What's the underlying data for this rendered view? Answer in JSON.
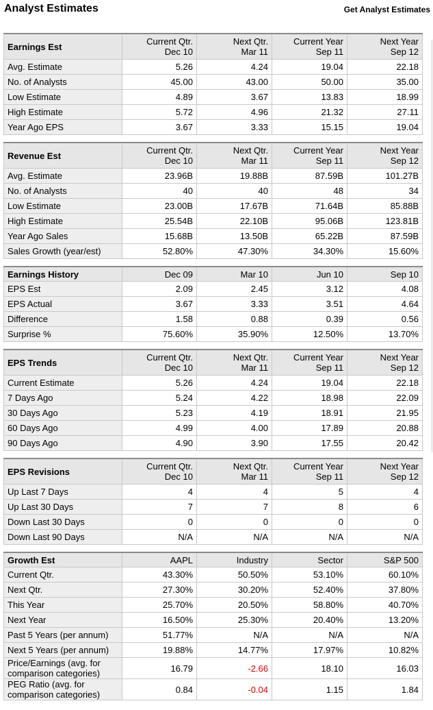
{
  "header": {
    "title": "Analyst Estimates",
    "link": "Get Analyst Estimates"
  },
  "tables": [
    {
      "title": "Earnings Est",
      "columns": [
        [
          "Current Qtr.",
          "Dec 10"
        ],
        [
          "Next Qtr.",
          "Mar 11"
        ],
        [
          "Current Year",
          "Sep 11"
        ],
        [
          "Next Year",
          "Sep 12"
        ]
      ],
      "rows": [
        {
          "label": "Avg. Estimate",
          "values": [
            "5.26",
            "4.24",
            "19.04",
            "22.18"
          ]
        },
        {
          "label": "No. of Analysts",
          "values": [
            "45.00",
            "43.00",
            "50.00",
            "35.00"
          ]
        },
        {
          "label": "Low Estimate",
          "values": [
            "4.89",
            "3.67",
            "13.83",
            "18.99"
          ]
        },
        {
          "label": "High Estimate",
          "values": [
            "5.72",
            "4.96",
            "21.32",
            "27.11"
          ]
        },
        {
          "label": "Year Ago EPS",
          "values": [
            "3.67",
            "3.33",
            "15.15",
            "19.04"
          ]
        }
      ]
    },
    {
      "title": "Revenue Est",
      "columns": [
        [
          "Current Qtr.",
          "Dec 10"
        ],
        [
          "Next Qtr.",
          "Mar 11"
        ],
        [
          "Current Year",
          "Sep 11"
        ],
        [
          "Next Year",
          "Sep 12"
        ]
      ],
      "rows": [
        {
          "label": "Avg. Estimate",
          "values": [
            "23.96B",
            "19.88B",
            "87.59B",
            "101.27B"
          ]
        },
        {
          "label": "No. of Analysts",
          "values": [
            "40",
            "40",
            "48",
            "34"
          ]
        },
        {
          "label": "Low Estimate",
          "values": [
            "23.00B",
            "17.67B",
            "71.64B",
            "85.88B"
          ]
        },
        {
          "label": "High Estimate",
          "values": [
            "25.54B",
            "22.10B",
            "95.06B",
            "123.81B"
          ]
        },
        {
          "label": "Year Ago Sales",
          "values": [
            "15.68B",
            "13.50B",
            "65.22B",
            "87.59B"
          ]
        },
        {
          "label": "Sales Growth (year/est)",
          "values": [
            "52.80%",
            "47.30%",
            "34.30%",
            "15.60%"
          ]
        }
      ]
    },
    {
      "title": "Earnings History",
      "columns": [
        [
          "Dec 09"
        ],
        [
          "Mar 10"
        ],
        [
          "Jun 10"
        ],
        [
          "Sep 10"
        ]
      ],
      "rows": [
        {
          "label": "EPS Est",
          "values": [
            "2.09",
            "2.45",
            "3.12",
            "4.08"
          ]
        },
        {
          "label": "EPS Actual",
          "values": [
            "3.67",
            "3.33",
            "3.51",
            "4.64"
          ]
        },
        {
          "label": "Difference",
          "values": [
            "1.58",
            "0.88",
            "0.39",
            "0.56"
          ]
        },
        {
          "label": "Surprise %",
          "values": [
            "75.60%",
            "35.90%",
            "12.50%",
            "13.70%"
          ]
        }
      ]
    },
    {
      "title": "EPS Trends",
      "columns": [
        [
          "Current Qtr.",
          "Dec 10"
        ],
        [
          "Next Qtr.",
          "Mar 11"
        ],
        [
          "Current Year",
          "Sep 11"
        ],
        [
          "Next Year",
          "Sep 12"
        ]
      ],
      "rows": [
        {
          "label": "Current Estimate",
          "values": [
            "5.26",
            "4.24",
            "19.04",
            "22.18"
          ]
        },
        {
          "label": "7 Days Ago",
          "values": [
            "5.24",
            "4.22",
            "18.98",
            "22.09"
          ]
        },
        {
          "label": "30 Days Ago",
          "values": [
            "5.23",
            "4.19",
            "18.91",
            "21.95"
          ]
        },
        {
          "label": "60 Days Ago",
          "values": [
            "4.99",
            "4.00",
            "17.89",
            "20.88"
          ]
        },
        {
          "label": "90 Days Ago",
          "values": [
            "4.90",
            "3.90",
            "17.55",
            "20.42"
          ]
        }
      ]
    },
    {
      "title": "EPS Revisions",
      "columns": [
        [
          "Current Qtr.",
          "Dec 10"
        ],
        [
          "Next Qtr.",
          "Mar 11"
        ],
        [
          "Current Year",
          "Sep 11"
        ],
        [
          "Next Year",
          "Sep 12"
        ]
      ],
      "rows": [
        {
          "label": "Up Last 7 Days",
          "values": [
            "4",
            "4",
            "5",
            "4"
          ]
        },
        {
          "label": "Up Last 30 Days",
          "values": [
            "7",
            "7",
            "8",
            "6"
          ]
        },
        {
          "label": "Down Last 30 Days",
          "values": [
            "0",
            "0",
            "0",
            "0"
          ]
        },
        {
          "label": "Down Last 90 Days",
          "values": [
            "N/A",
            "N/A",
            "N/A",
            "N/A"
          ]
        }
      ]
    },
    {
      "title": "Growth Est",
      "columns": [
        [
          "AAPL"
        ],
        [
          "Industry"
        ],
        [
          "Sector"
        ],
        [
          "S&P 500"
        ]
      ],
      "rows": [
        {
          "label": "Current Qtr.",
          "values": [
            "43.30%",
            "50.50%",
            "53.10%",
            "60.10%"
          ]
        },
        {
          "label": "Next Qtr.",
          "values": [
            "27.30%",
            "30.20%",
            "52.40%",
            "37.80%"
          ]
        },
        {
          "label": "This Year",
          "values": [
            "25.70%",
            "20.50%",
            "58.80%",
            "40.70%"
          ]
        },
        {
          "label": "Next Year",
          "values": [
            "16.50%",
            "25.30%",
            "20.40%",
            "13.20%"
          ]
        },
        {
          "label": "Past 5 Years (per annum)",
          "values": [
            "51.77%",
            "N/A",
            "N/A",
            "N/A"
          ]
        },
        {
          "label": "Next 5 Years (per annum)",
          "values": [
            "19.88%",
            "14.77%",
            "17.97%",
            "10.82%"
          ]
        },
        {
          "label": "Price/Earnings (avg. for comparison categories)",
          "values": [
            "16.79",
            "-2.66",
            "18.10",
            "16.03"
          ]
        },
        {
          "label": "PEG Ratio (avg. for comparison categories)",
          "values": [
            "0.84",
            "-0.04",
            "1.15",
            "1.84"
          ]
        }
      ]
    }
  ]
}
